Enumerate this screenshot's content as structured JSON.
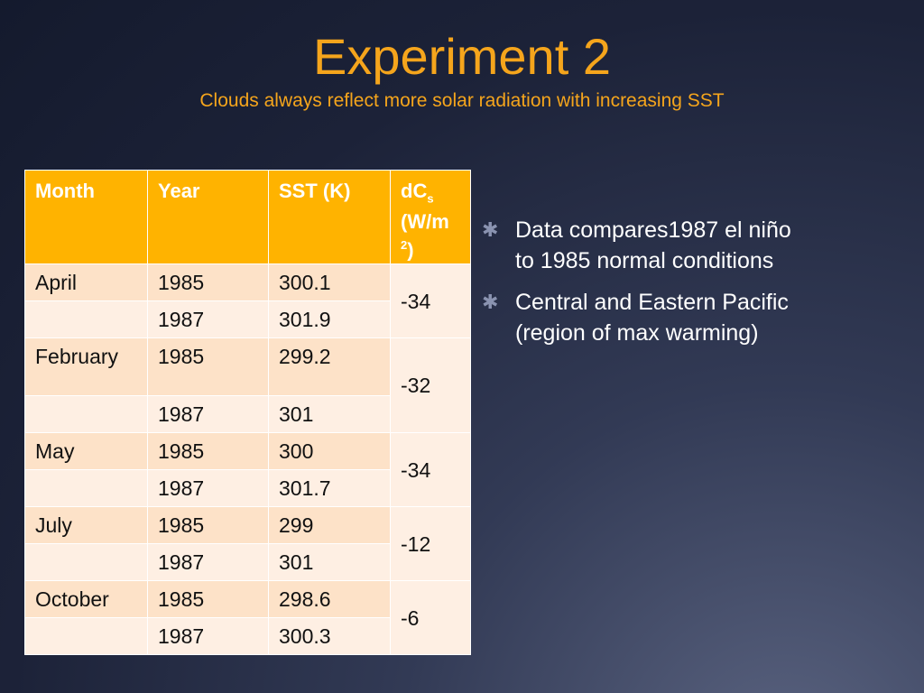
{
  "slide": {
    "title": "Experiment 2",
    "subtitle": "Clouds always reflect more solar radiation with increasing SST"
  },
  "table": {
    "headers": {
      "month": "Month",
      "year": "Year",
      "sst": "SST (K)",
      "dcs_main": "dC",
      "dcs_sub": "s",
      "dcs_unit_a": "(W/m",
      "dcs_unit_sup": "2",
      "dcs_unit_b": ")"
    },
    "groups": [
      {
        "month": "April",
        "dcs": "-34",
        "rows": [
          {
            "year": "1985",
            "sst": "300.1"
          },
          {
            "year": "1987",
            "sst": "301.9"
          }
        ]
      },
      {
        "month": "February",
        "dcs": "-32",
        "rows": [
          {
            "year": "1985",
            "sst": "299.2"
          },
          {
            "year": "1987",
            "sst": "301"
          }
        ]
      },
      {
        "month": "May",
        "dcs": "-34",
        "rows": [
          {
            "year": "1985",
            "sst": "300"
          },
          {
            "year": "1987",
            "sst": "301.7"
          }
        ]
      },
      {
        "month": "July",
        "dcs": "-12",
        "rows": [
          {
            "year": "1985",
            "sst": "299"
          },
          {
            "year": "1987",
            "sst": "301"
          }
        ]
      },
      {
        "month": "October",
        "dcs": "-6",
        "rows": [
          {
            "year": "1985",
            "sst": "298.6"
          },
          {
            "year": "1987",
            "sst": "300.3"
          }
        ]
      }
    ]
  },
  "bullets": [
    {
      "icon": "asterisk-bullet-icon",
      "text": "Data compares1987 el niño to 1985 normal conditions"
    },
    {
      "icon": "asterisk-bullet-icon",
      "text": "Central and Eastern Pacific (region of max warming)"
    }
  ],
  "colors": {
    "title": "#f5a51c",
    "header_bg": "#ffb300",
    "row_a": "#fde2c8",
    "row_b": "#feefe3",
    "bullet": "#8a93b0"
  }
}
